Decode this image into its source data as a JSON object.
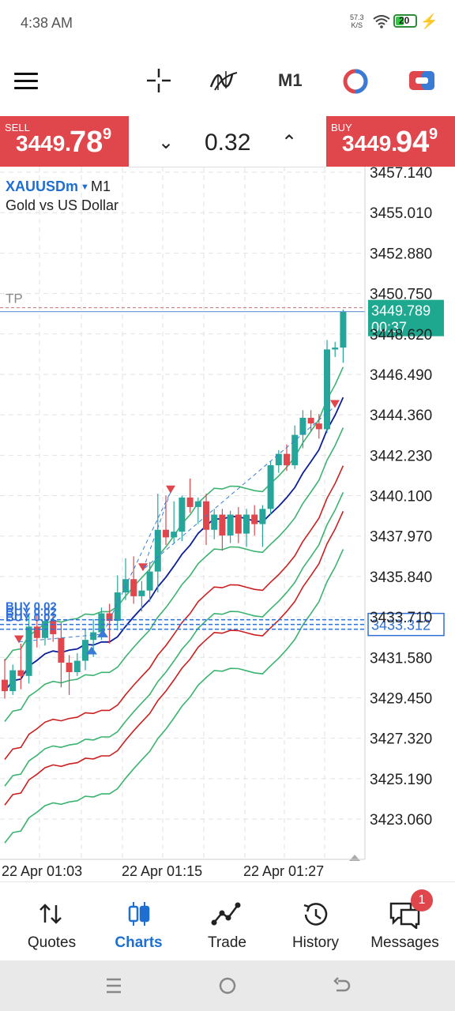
{
  "status": {
    "time": "4:38 AM",
    "net_speed_value": "57.3",
    "net_speed_unit": "K/S",
    "battery": "20"
  },
  "toolbar": {
    "timeframe": "M1",
    "icons": [
      "menu-icon",
      "crosshair-icon",
      "indicator-icon",
      "timeframe-label",
      "objects-icon",
      "trade-icon"
    ]
  },
  "sell": {
    "label": "SELL",
    "price_small": "3449.",
    "price_big": "78",
    "price_sup": "9"
  },
  "buy": {
    "label": "BUY",
    "price_small": "3449.",
    "price_big": "94",
    "price_sup": "9"
  },
  "spread": {
    "value": "0.32"
  },
  "symbol": {
    "name": "XAUUSDm",
    "timeframe": "M1",
    "description": "Gold vs US Dollar"
  },
  "chart_data": {
    "type": "candlestick",
    "price_axis": [
      "3457.140",
      "3455.010",
      "3452.880",
      "3450.750",
      "3448.620",
      "3446.490",
      "3444.360",
      "3442.230",
      "3440.100",
      "3437.970",
      "3435.840",
      "3433.710",
      "3431.580",
      "3429.450",
      "3427.320",
      "3425.190",
      "3423.060"
    ],
    "time_axis": [
      "22 Apr 01:03",
      "22 Apr 01:15",
      "22 Apr 01:27"
    ],
    "current_price": "3449.789",
    "countdown": "00:37",
    "position_price": "3433.312",
    "tp_label": "TP",
    "order_labels": [
      "BUY 0.02",
      "BUY 0.02",
      "BUY 0.02"
    ],
    "candles": [
      {
        "o": 3430.4,
        "h": 3431.5,
        "l": 3429.4,
        "c": 3429.8
      },
      {
        "o": 3429.8,
        "h": 3431.2,
        "l": 3429.6,
        "c": 3430.9
      },
      {
        "o": 3430.9,
        "h": 3432.3,
        "l": 3429.9,
        "c": 3430.6
      },
      {
        "o": 3430.6,
        "h": 3433.9,
        "l": 3430.2,
        "c": 3433.2
      },
      {
        "o": 3433.2,
        "h": 3433.8,
        "l": 3432.1,
        "c": 3432.6
      },
      {
        "o": 3432.6,
        "h": 3433.8,
        "l": 3432.2,
        "c": 3433.5
      },
      {
        "o": 3433.5,
        "h": 3433.9,
        "l": 3432.4,
        "c": 3432.8
      },
      {
        "o": 3432.6,
        "h": 3433.4,
        "l": 3430.0,
        "c": 3431.3
      },
      {
        "o": 3431.3,
        "h": 3431.7,
        "l": 3429.6,
        "c": 3430.8
      },
      {
        "o": 3430.8,
        "h": 3431.8,
        "l": 3430.6,
        "c": 3431.4
      },
      {
        "o": 3431.4,
        "h": 3433.1,
        "l": 3430.9,
        "c": 3432.5
      },
      {
        "o": 3432.5,
        "h": 3433.6,
        "l": 3431.6,
        "c": 3432.9
      },
      {
        "o": 3432.9,
        "h": 3434.2,
        "l": 3432.5,
        "c": 3433.9
      },
      {
        "o": 3433.9,
        "h": 3434.4,
        "l": 3432.3,
        "c": 3433.5
      },
      {
        "o": 3433.5,
        "h": 3435.9,
        "l": 3433.0,
        "c": 3435.0
      },
      {
        "o": 3435.0,
        "h": 3436.8,
        "l": 3434.6,
        "c": 3435.7
      },
      {
        "o": 3435.7,
        "h": 3436.9,
        "l": 3434.4,
        "c": 3434.8
      },
      {
        "o": 3434.8,
        "h": 3435.6,
        "l": 3434.0,
        "c": 3435.1
      },
      {
        "o": 3435.1,
        "h": 3436.6,
        "l": 3434.5,
        "c": 3436.1
      },
      {
        "o": 3436.1,
        "h": 3440.2,
        "l": 3435.0,
        "c": 3438.3
      },
      {
        "o": 3438.3,
        "h": 3440.1,
        "l": 3437.5,
        "c": 3437.9
      },
      {
        "o": 3437.9,
        "h": 3439.8,
        "l": 3437.6,
        "c": 3438.2
      },
      {
        "o": 3438.2,
        "h": 3440.1,
        "l": 3437.7,
        "c": 3440.0
      },
      {
        "o": 3440.0,
        "h": 3441.0,
        "l": 3439.2,
        "c": 3439.5
      },
      {
        "o": 3439.5,
        "h": 3440.0,
        "l": 3438.6,
        "c": 3439.8
      },
      {
        "o": 3439.8,
        "h": 3440.2,
        "l": 3437.5,
        "c": 3438.3
      },
      {
        "o": 3438.3,
        "h": 3439.4,
        "l": 3437.8,
        "c": 3439.1
      },
      {
        "o": 3439.1,
        "h": 3439.4,
        "l": 3437.2,
        "c": 3438.0
      },
      {
        "o": 3438.0,
        "h": 3439.3,
        "l": 3437.6,
        "c": 3439.1
      },
      {
        "o": 3439.1,
        "h": 3439.5,
        "l": 3437.6,
        "c": 3438.1
      },
      {
        "o": 3438.1,
        "h": 3439.4,
        "l": 3437.4,
        "c": 3439.1
      },
      {
        "o": 3439.1,
        "h": 3439.6,
        "l": 3438.0,
        "c": 3438.6
      },
      {
        "o": 3438.6,
        "h": 3439.6,
        "l": 3437.4,
        "c": 3439.4
      },
      {
        "o": 3439.4,
        "h": 3441.9,
        "l": 3439.1,
        "c": 3441.7
      },
      {
        "o": 3441.7,
        "h": 3442.5,
        "l": 3441.3,
        "c": 3442.3
      },
      {
        "o": 3442.3,
        "h": 3442.8,
        "l": 3441.4,
        "c": 3441.7
      },
      {
        "o": 3441.7,
        "h": 3443.8,
        "l": 3441.5,
        "c": 3443.3
      },
      {
        "o": 3443.3,
        "h": 3444.6,
        "l": 3442.6,
        "c": 3444.2
      },
      {
        "o": 3444.2,
        "h": 3444.6,
        "l": 3443.5,
        "c": 3443.9
      },
      {
        "o": 3443.9,
        "h": 3444.4,
        "l": 3443.1,
        "c": 3443.6
      },
      {
        "o": 3443.6,
        "h": 3448.3,
        "l": 3443.4,
        "c": 3447.8
      },
      {
        "o": 3447.8,
        "h": 3448.2,
        "l": 3447.4,
        "c": 3447.9
      },
      {
        "o": 3447.9,
        "h": 3449.9,
        "l": 3447.1,
        "c": 3449.8
      }
    ]
  },
  "nav": {
    "items": [
      {
        "label": "Quotes",
        "icon": "quotes-icon",
        "active": false
      },
      {
        "label": "Charts",
        "icon": "charts-icon",
        "active": true
      },
      {
        "label": "Trade",
        "icon": "trade-icon",
        "active": false
      },
      {
        "label": "History",
        "icon": "history-icon",
        "active": false
      },
      {
        "label": "Messages",
        "icon": "messages-icon",
        "active": false
      }
    ],
    "messages_badge": "1"
  },
  "colors": {
    "sell_buy_bg": "#e0474c",
    "bull": "#26a69a",
    "bear": "#e0474c",
    "ma_blue": "#0a1f9a",
    "band_green": "#3cb371",
    "band_red": "#cc1f1f",
    "accent": "#1e6fd1"
  }
}
